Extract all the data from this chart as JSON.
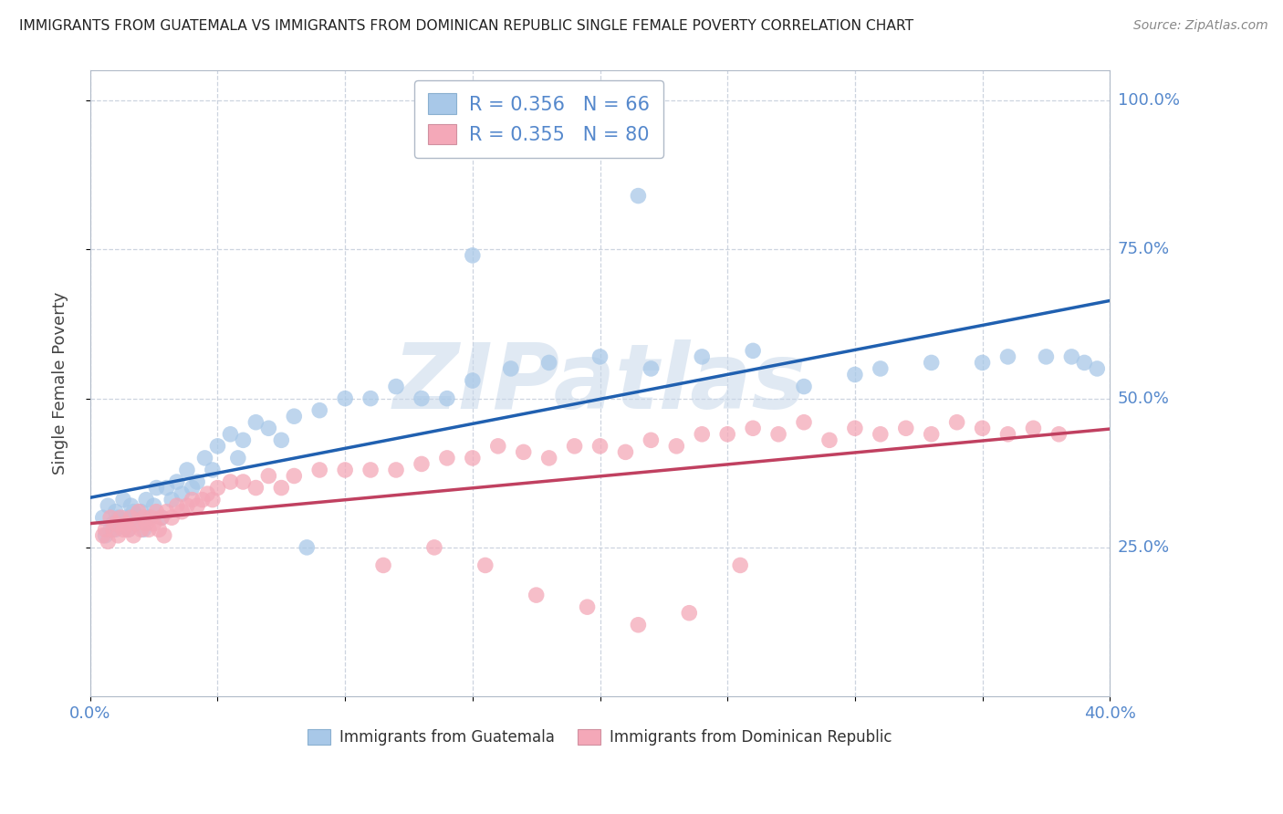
{
  "title": "IMMIGRANTS FROM GUATEMALA VS IMMIGRANTS FROM DOMINICAN REPUBLIC SINGLE FEMALE POVERTY CORRELATION CHART",
  "source": "Source: ZipAtlas.com",
  "ylabel_label": "Single Female Poverty",
  "xlim": [
    0.0,
    0.4
  ],
  "ylim": [
    0.0,
    1.05
  ],
  "guatemala_R": 0.356,
  "guatemala_N": 66,
  "dominican_R": 0.355,
  "dominican_N": 80,
  "guatemala_color": "#a8c8e8",
  "dominican_color": "#f4a8b8",
  "guatemala_line_color": "#2060b0",
  "dominican_line_color": "#c04060",
  "watermark_color": "#c8d8ea",
  "watermark_text": "ZIPatlas",
  "legend_label_guatemala": "Immigrants from Guatemala",
  "legend_label_dominican": "Immigrants from Dominican Republic",
  "grid_color": "#c8d0dc",
  "title_color": "#222222",
  "axis_label_color": "#5588cc",
  "y_tick_values": [
    0.25,
    0.5,
    0.75,
    1.0
  ],
  "y_tick_labels": [
    "25.0%",
    "50.0%",
    "75.0%",
    "100.0%"
  ],
  "x_tick_values": [
    0.0,
    0.05,
    0.1,
    0.15,
    0.2,
    0.25,
    0.3,
    0.35,
    0.4
  ],
  "gx": [
    0.005,
    0.006,
    0.007,
    0.008,
    0.009,
    0.01,
    0.01,
    0.011,
    0.012,
    0.013,
    0.014,
    0.015,
    0.016,
    0.017,
    0.018,
    0.019,
    0.02,
    0.021,
    0.022,
    0.023,
    0.025,
    0.026,
    0.028,
    0.03,
    0.032,
    0.034,
    0.036,
    0.038,
    0.04,
    0.042,
    0.045,
    0.048,
    0.05,
    0.055,
    0.058,
    0.06,
    0.065,
    0.07,
    0.075,
    0.08,
    0.09,
    0.1,
    0.11,
    0.12,
    0.13,
    0.14,
    0.15,
    0.165,
    0.18,
    0.2,
    0.215,
    0.22,
    0.24,
    0.26,
    0.28,
    0.3,
    0.31,
    0.33,
    0.35,
    0.36,
    0.375,
    0.385,
    0.39,
    0.395,
    0.15,
    0.085
  ],
  "gy": [
    0.3,
    0.27,
    0.32,
    0.28,
    0.29,
    0.31,
    0.28,
    0.3,
    0.29,
    0.33,
    0.3,
    0.28,
    0.32,
    0.31,
    0.29,
    0.3,
    0.31,
    0.28,
    0.33,
    0.3,
    0.32,
    0.35,
    0.3,
    0.35,
    0.33,
    0.36,
    0.34,
    0.38,
    0.35,
    0.36,
    0.4,
    0.38,
    0.42,
    0.44,
    0.4,
    0.43,
    0.46,
    0.45,
    0.43,
    0.47,
    0.48,
    0.5,
    0.5,
    0.52,
    0.5,
    0.5,
    0.53,
    0.55,
    0.56,
    0.57,
    0.84,
    0.55,
    0.57,
    0.58,
    0.52,
    0.54,
    0.55,
    0.56,
    0.56,
    0.57,
    0.57,
    0.57,
    0.56,
    0.55,
    0.74,
    0.25
  ],
  "dx": [
    0.005,
    0.006,
    0.007,
    0.008,
    0.009,
    0.01,
    0.011,
    0.012,
    0.013,
    0.014,
    0.015,
    0.016,
    0.017,
    0.018,
    0.019,
    0.02,
    0.021,
    0.022,
    0.023,
    0.024,
    0.025,
    0.026,
    0.027,
    0.028,
    0.029,
    0.03,
    0.032,
    0.034,
    0.036,
    0.038,
    0.04,
    0.042,
    0.044,
    0.046,
    0.048,
    0.05,
    0.055,
    0.06,
    0.065,
    0.07,
    0.075,
    0.08,
    0.09,
    0.1,
    0.11,
    0.12,
    0.13,
    0.14,
    0.15,
    0.16,
    0.17,
    0.18,
    0.19,
    0.2,
    0.21,
    0.22,
    0.23,
    0.24,
    0.25,
    0.26,
    0.27,
    0.28,
    0.29,
    0.3,
    0.31,
    0.32,
    0.33,
    0.34,
    0.35,
    0.36,
    0.37,
    0.38,
    0.175,
    0.195,
    0.215,
    0.235,
    0.255,
    0.155,
    0.135,
    0.115
  ],
  "dy": [
    0.27,
    0.28,
    0.26,
    0.3,
    0.28,
    0.29,
    0.27,
    0.3,
    0.28,
    0.29,
    0.28,
    0.3,
    0.27,
    0.29,
    0.31,
    0.28,
    0.3,
    0.29,
    0.28,
    0.3,
    0.29,
    0.31,
    0.28,
    0.3,
    0.27,
    0.31,
    0.3,
    0.32,
    0.31,
    0.32,
    0.33,
    0.32,
    0.33,
    0.34,
    0.33,
    0.35,
    0.36,
    0.36,
    0.35,
    0.37,
    0.35,
    0.37,
    0.38,
    0.38,
    0.38,
    0.38,
    0.39,
    0.4,
    0.4,
    0.42,
    0.41,
    0.4,
    0.42,
    0.42,
    0.41,
    0.43,
    0.42,
    0.44,
    0.44,
    0.45,
    0.44,
    0.46,
    0.43,
    0.45,
    0.44,
    0.45,
    0.44,
    0.46,
    0.45,
    0.44,
    0.45,
    0.44,
    0.17,
    0.15,
    0.12,
    0.14,
    0.22,
    0.22,
    0.25,
    0.22
  ]
}
